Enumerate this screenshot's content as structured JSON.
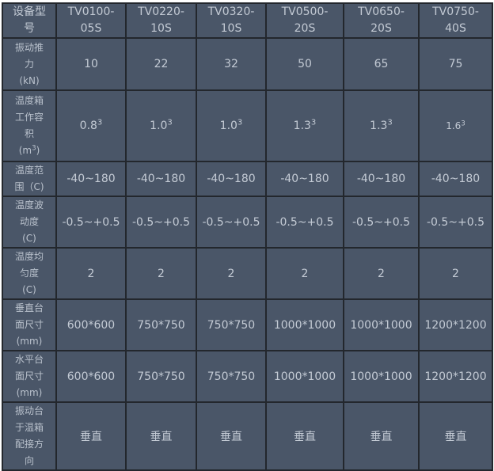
{
  "table": {
    "header": {
      "label": [
        "设备型",
        "号"
      ],
      "models": [
        [
          "TV0100-",
          "05S"
        ],
        [
          "TV0220-",
          "10S"
        ],
        [
          "TV0320-",
          "10S"
        ],
        [
          "TV0500-",
          "20S"
        ],
        [
          "TV0650-",
          "20S"
        ],
        [
          "TV0750-",
          "40S"
        ]
      ]
    },
    "rows": [
      {
        "label": [
          "振动推",
          "力",
          "(kN)"
        ],
        "values": [
          "10",
          "22",
          "32",
          "50",
          "65",
          "75"
        ]
      },
      {
        "label": [
          "温度箱",
          "工作容",
          "积",
          "(m",
          "3",
          ")"
        ],
        "values": [
          [
            "0.8",
            "3"
          ],
          [
            "1.0",
            "3"
          ],
          [
            "1.0",
            "3"
          ],
          [
            "1.3",
            "3"
          ],
          [
            "1.3",
            "3"
          ],
          [
            "1.6",
            "3"
          ]
        ]
      },
      {
        "label": [
          "温度范",
          "围（C)"
        ],
        "values": [
          "-40~180",
          "-40~180",
          "-40~180",
          "-40~180",
          "-40~180",
          "-40~180"
        ]
      },
      {
        "label": [
          "温度波",
          "动度",
          "(C)"
        ],
        "values": [
          "-0.5~+0.5",
          "-0.5~+0.5",
          "-0.5~+0.5",
          "-0.5~+0.5",
          "-0.5~+0.5",
          "-0.5~+0.5"
        ]
      },
      {
        "label": [
          "温度均",
          "匀度",
          "(C)"
        ],
        "values": [
          "2",
          "2",
          "2",
          "2",
          "2",
          "2"
        ]
      },
      {
        "label": [
          "垂直台",
          "面尺寸",
          "(mm)"
        ],
        "values": [
          "600*600",
          "750*750",
          "750*750",
          "1000*1000",
          "1000*1000",
          "1200*1200"
        ]
      },
      {
        "label": [
          "水平台",
          "面尺寸",
          "(mm)"
        ],
        "values": [
          "600*600",
          "750*750",
          "750*750",
          "1000*1000",
          "1000*1000",
          "1200*1200"
        ]
      },
      {
        "label": [
          "振动台",
          "于温箱",
          "配接方",
          "向"
        ],
        "values": [
          "垂直",
          "垂直",
          "垂直",
          "垂直",
          "垂直",
          "垂直"
        ]
      }
    ]
  },
  "colors": {
    "cell_bg": "#4a5668",
    "border": "#23272d",
    "text": "#c3cad4"
  }
}
